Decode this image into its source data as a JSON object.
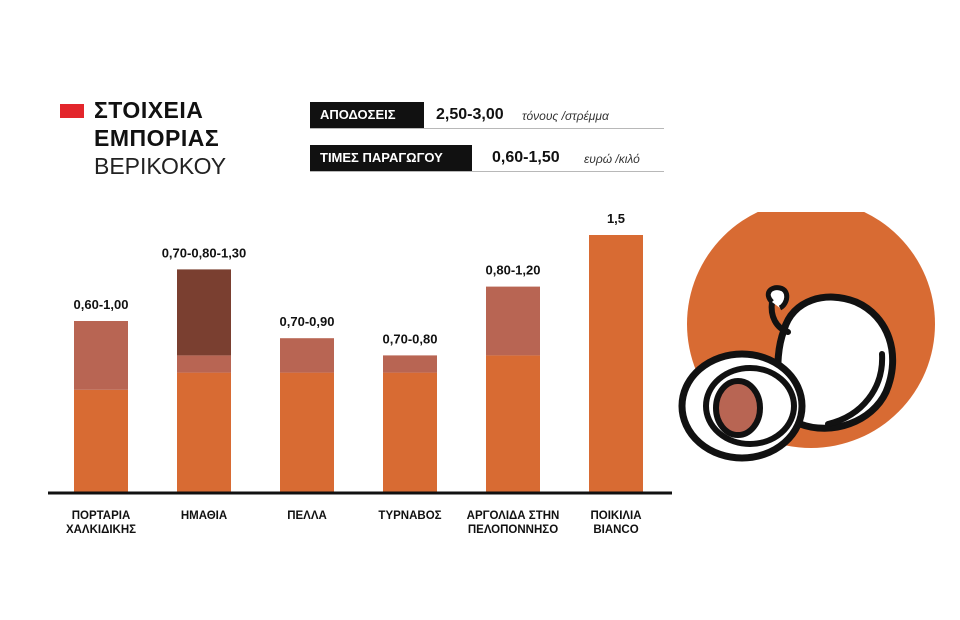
{
  "title": {
    "line1": "ΣΤΟΙΧΕΙΑ",
    "line2": "ΕΜΠΟΡΙΑΣ",
    "line3": "ΒΕΡΙΚΟΚΟΥ"
  },
  "stats": {
    "yields": {
      "label": "ΑΠΟΔΟΣΕΙΣ",
      "value": "2,50-3,00",
      "unit": "τόνους /στρέμμα"
    },
    "prices": {
      "label": "ΤΙΜΕΣ ΠΑΡΑΓΩΓΟΥ",
      "value": "0,60-1,50",
      "unit": "ευρώ /κιλό"
    }
  },
  "colors": {
    "base": "#d86b33",
    "range": "#b86553",
    "range_high": "#7a3f30",
    "axis": "#111111",
    "accent_red": "#e3262b",
    "circle": "#d86b33",
    "pit": "#b86553"
  },
  "icon": "apricot-icon",
  "chart_data": {
    "type": "bar",
    "ylim": [
      0,
      1.5
    ],
    "categories": [
      [
        "ΠΟΡΤΑΡΙΑ",
        "ΧΑΛΚΙΔΙΚΗΣ"
      ],
      [
        "ΗΜΑΘΙΑ"
      ],
      [
        "ΠΕΛΛΑ"
      ],
      [
        "ΤΥΡΝΑΒΟΣ"
      ],
      [
        "ΑΡΓΟΛΙΔΑ ΣΤΗΝ",
        "ΠΕΛΟΠΟΝΝΗΣΟ"
      ],
      [
        "ΠΟΙΚΙΛΙΑ",
        "BIANCO"
      ]
    ],
    "ranges": [
      [
        0.6,
        1.0
      ],
      [
        0.7,
        0.8,
        1.3
      ],
      [
        0.7,
        0.9
      ],
      [
        0.7,
        0.8
      ],
      [
        0.8,
        1.2
      ],
      [
        1.5
      ]
    ],
    "labels": [
      "0,60-1,00",
      "0,70-0,80-1,30",
      "0,70-0,90",
      "0,70-0,80",
      "0,80-1,20",
      "1,5"
    ]
  }
}
